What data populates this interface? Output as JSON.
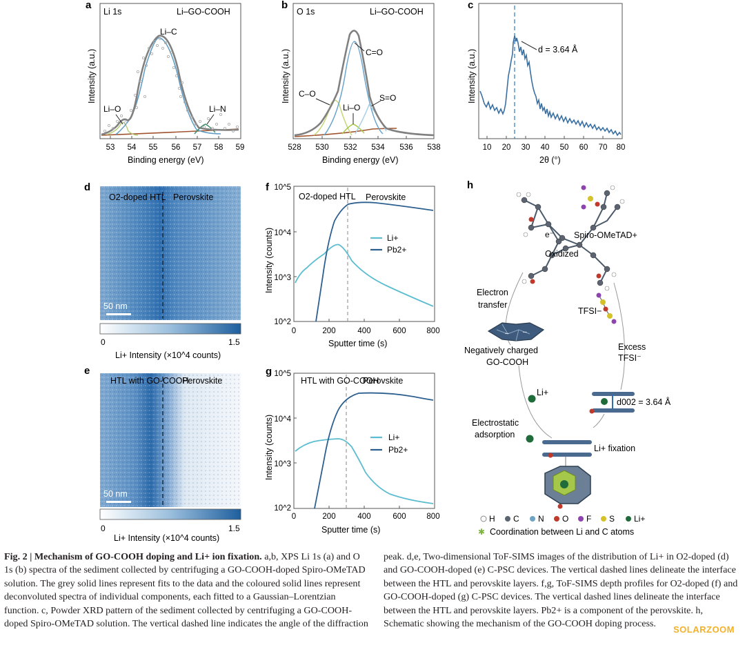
{
  "panels": {
    "a": {
      "letter": "a",
      "title": "Li 1s",
      "sample": "Li–GO-COOH",
      "ylabel": "Intensity (a.u.)",
      "xlabel": "Binding energy (eV)",
      "xticks": [
        "53",
        "54",
        "55",
        "56",
        "57",
        "58",
        "59"
      ],
      "peaks": {
        "lic": "Li–C",
        "lio": "Li–O",
        "lin": "Li–N"
      }
    },
    "b": {
      "letter": "b",
      "title": "O 1s",
      "sample": "Li–GO-COOH",
      "ylabel": "Intensity (a.u.)",
      "xlabel": "Binding energy (eV)",
      "xticks": [
        "528",
        "530",
        "532",
        "534",
        "536",
        "538"
      ],
      "peaks": {
        "co_double": "C=O",
        "co": "C–O",
        "lio": "Li–O",
        "so": "S=O"
      }
    },
    "c": {
      "letter": "c",
      "ylabel": "Intensity (a.u.)",
      "xlabel": "2θ (°)",
      "annotation": "d = 3.64 Å",
      "xticks": [
        "10",
        "20",
        "30",
        "40",
        "50",
        "60",
        "70",
        "80"
      ]
    },
    "d": {
      "letter": "d",
      "left_label": "O2-doped HTL",
      "right_label": "Perovskite",
      "scale": "50 nm",
      "cbar_min": "0",
      "cbar_max": "1.5",
      "cbar_label": "Li+ Intensity (×10^4 counts)"
    },
    "e": {
      "letter": "e",
      "left_label": "HTL with GO-COOH",
      "right_label": "Perovskite",
      "scale": "50 nm",
      "cbar_min": "0",
      "cbar_max": "1.5",
      "cbar_label": "Li+ Intensity (×10^4 counts)"
    },
    "f": {
      "letter": "f",
      "left_label": "O2-doped HTL",
      "right_label": "Perovskite",
      "ylabel": "Intensity (counts)",
      "xlabel": "Sputter time (s)",
      "legend": [
        "Li+",
        "Pb2+"
      ],
      "xticks": [
        "0",
        "200",
        "400",
        "600",
        "800"
      ],
      "yticks": [
        "10^2",
        "10^3",
        "10^4",
        "10^5"
      ]
    },
    "g": {
      "letter": "g",
      "left_label": "HTL with GO-COOH",
      "right_label": "Perovskite",
      "ylabel": "Intensity (counts)",
      "xlabel": "Sputter time (s)",
      "legend": [
        "Li+",
        "Pb2+"
      ],
      "xticks": [
        "0",
        "200",
        "400",
        "600",
        "800"
      ],
      "yticks": [
        "10^2",
        "10^3",
        "10^4",
        "10^5"
      ]
    },
    "h": {
      "letter": "h",
      "spiro": "Spiro-OMeTAD+",
      "oxidized": "Oxidized",
      "electron_transfer": "Electron transfer",
      "tfsi": "TFSI−",
      "neg_charged": "Negatively charged GO-COOH",
      "excess": "Excess TFSI−",
      "li": "Li+",
      "d002": "d002 = 3.64 Å",
      "electrostatic": "Electrostatic adsorption",
      "fixation": "Li+ fixation",
      "legend": [
        "H",
        "C",
        "N",
        "O",
        "F",
        "S",
        "Li+"
      ],
      "coordination": "Coordination between Li and C atoms"
    }
  },
  "colors": {
    "fit_grey": "#7d7d7d",
    "light_blue": "#5cbcd0",
    "dark_blue": "#2c5f8f",
    "xrd": "#3a6fa0",
    "map_blue": "#2f6ba8",
    "bg_brown": "#a0522d",
    "green": "#9ccf60"
  },
  "caption": {
    "title": "Fig. 2 | Mechanism of GO-COOH doping and Li+ ion fixation.",
    "left": " a,b, XPS Li 1s (a) and O 1s (b) spectra of the sediment collected by centrifuging a GO-COOH-doped Spiro-OMeTAD solution. The grey solid lines represent fits to the data and the coloured solid lines represent deconvoluted spectra of individual components, each fitted to a Gaussian–Lorentzian function. c, Powder XRD pattern of the sediment collected by centrifuging a GO-COOH-doped Spiro-OMeTAD solution. The vertical dashed line indicates the angle of the diffraction",
    "right": "peak. d,e, Two-dimensional ToF-SIMS images of the distribution of Li+ in O2-doped (d) and GO-COOH-doped (e) C-PSC devices. The vertical dashed lines delineate the interface between the HTL and perovskite layers. f,g, ToF-SIMS depth profiles for O2-doped (f) and GO-COOH-doped (g) C-PSC devices. The vertical dashed lines delineate the interface between the HTL and perovskite layers. Pb2+ is a component of the perovskite. h, Schematic showing the mechanism of the GO-COOH doping process."
  },
  "watermark": "SOLARZOOM"
}
